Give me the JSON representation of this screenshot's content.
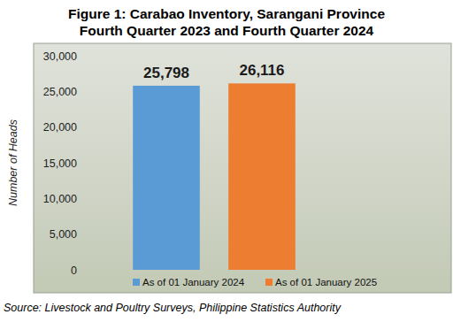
{
  "chart_data": {
    "type": "bar",
    "title": "Figure 1: Carabao Inventory, Sarangani Province",
    "subtitle": "Fourth Quarter 2023 and Fourth Quarter 2024",
    "y_label": "Number of Heads",
    "source": "Source: Livestock and Poultry Surveys, Philippine Statistics Authority",
    "categories": [
      "As of 01 January 2024",
      "As of 01 January 2025"
    ],
    "values": [
      25798,
      26116
    ],
    "value_labels": [
      "25,798",
      "26,116"
    ],
    "colors": [
      "#5b9bd5",
      "#ed7d31"
    ],
    "ylim": [
      0,
      30000
    ],
    "yticks": [
      0,
      {
        "value": 5000,
        "label": "5,000"
      },
      {
        "value": 10000,
        "label": "10,000"
      },
      {
        "value": 15000,
        "label": "15,000"
      },
      {
        "value": 20000,
        "label": "20,000"
      },
      {
        "value": 25000,
        "label": "25,000"
      },
      {
        "value": 30000,
        "label": "30,000"
      }
    ],
    "grid": false,
    "data_labels": true,
    "legend": "bottom",
    "tick_labels": "y"
  }
}
